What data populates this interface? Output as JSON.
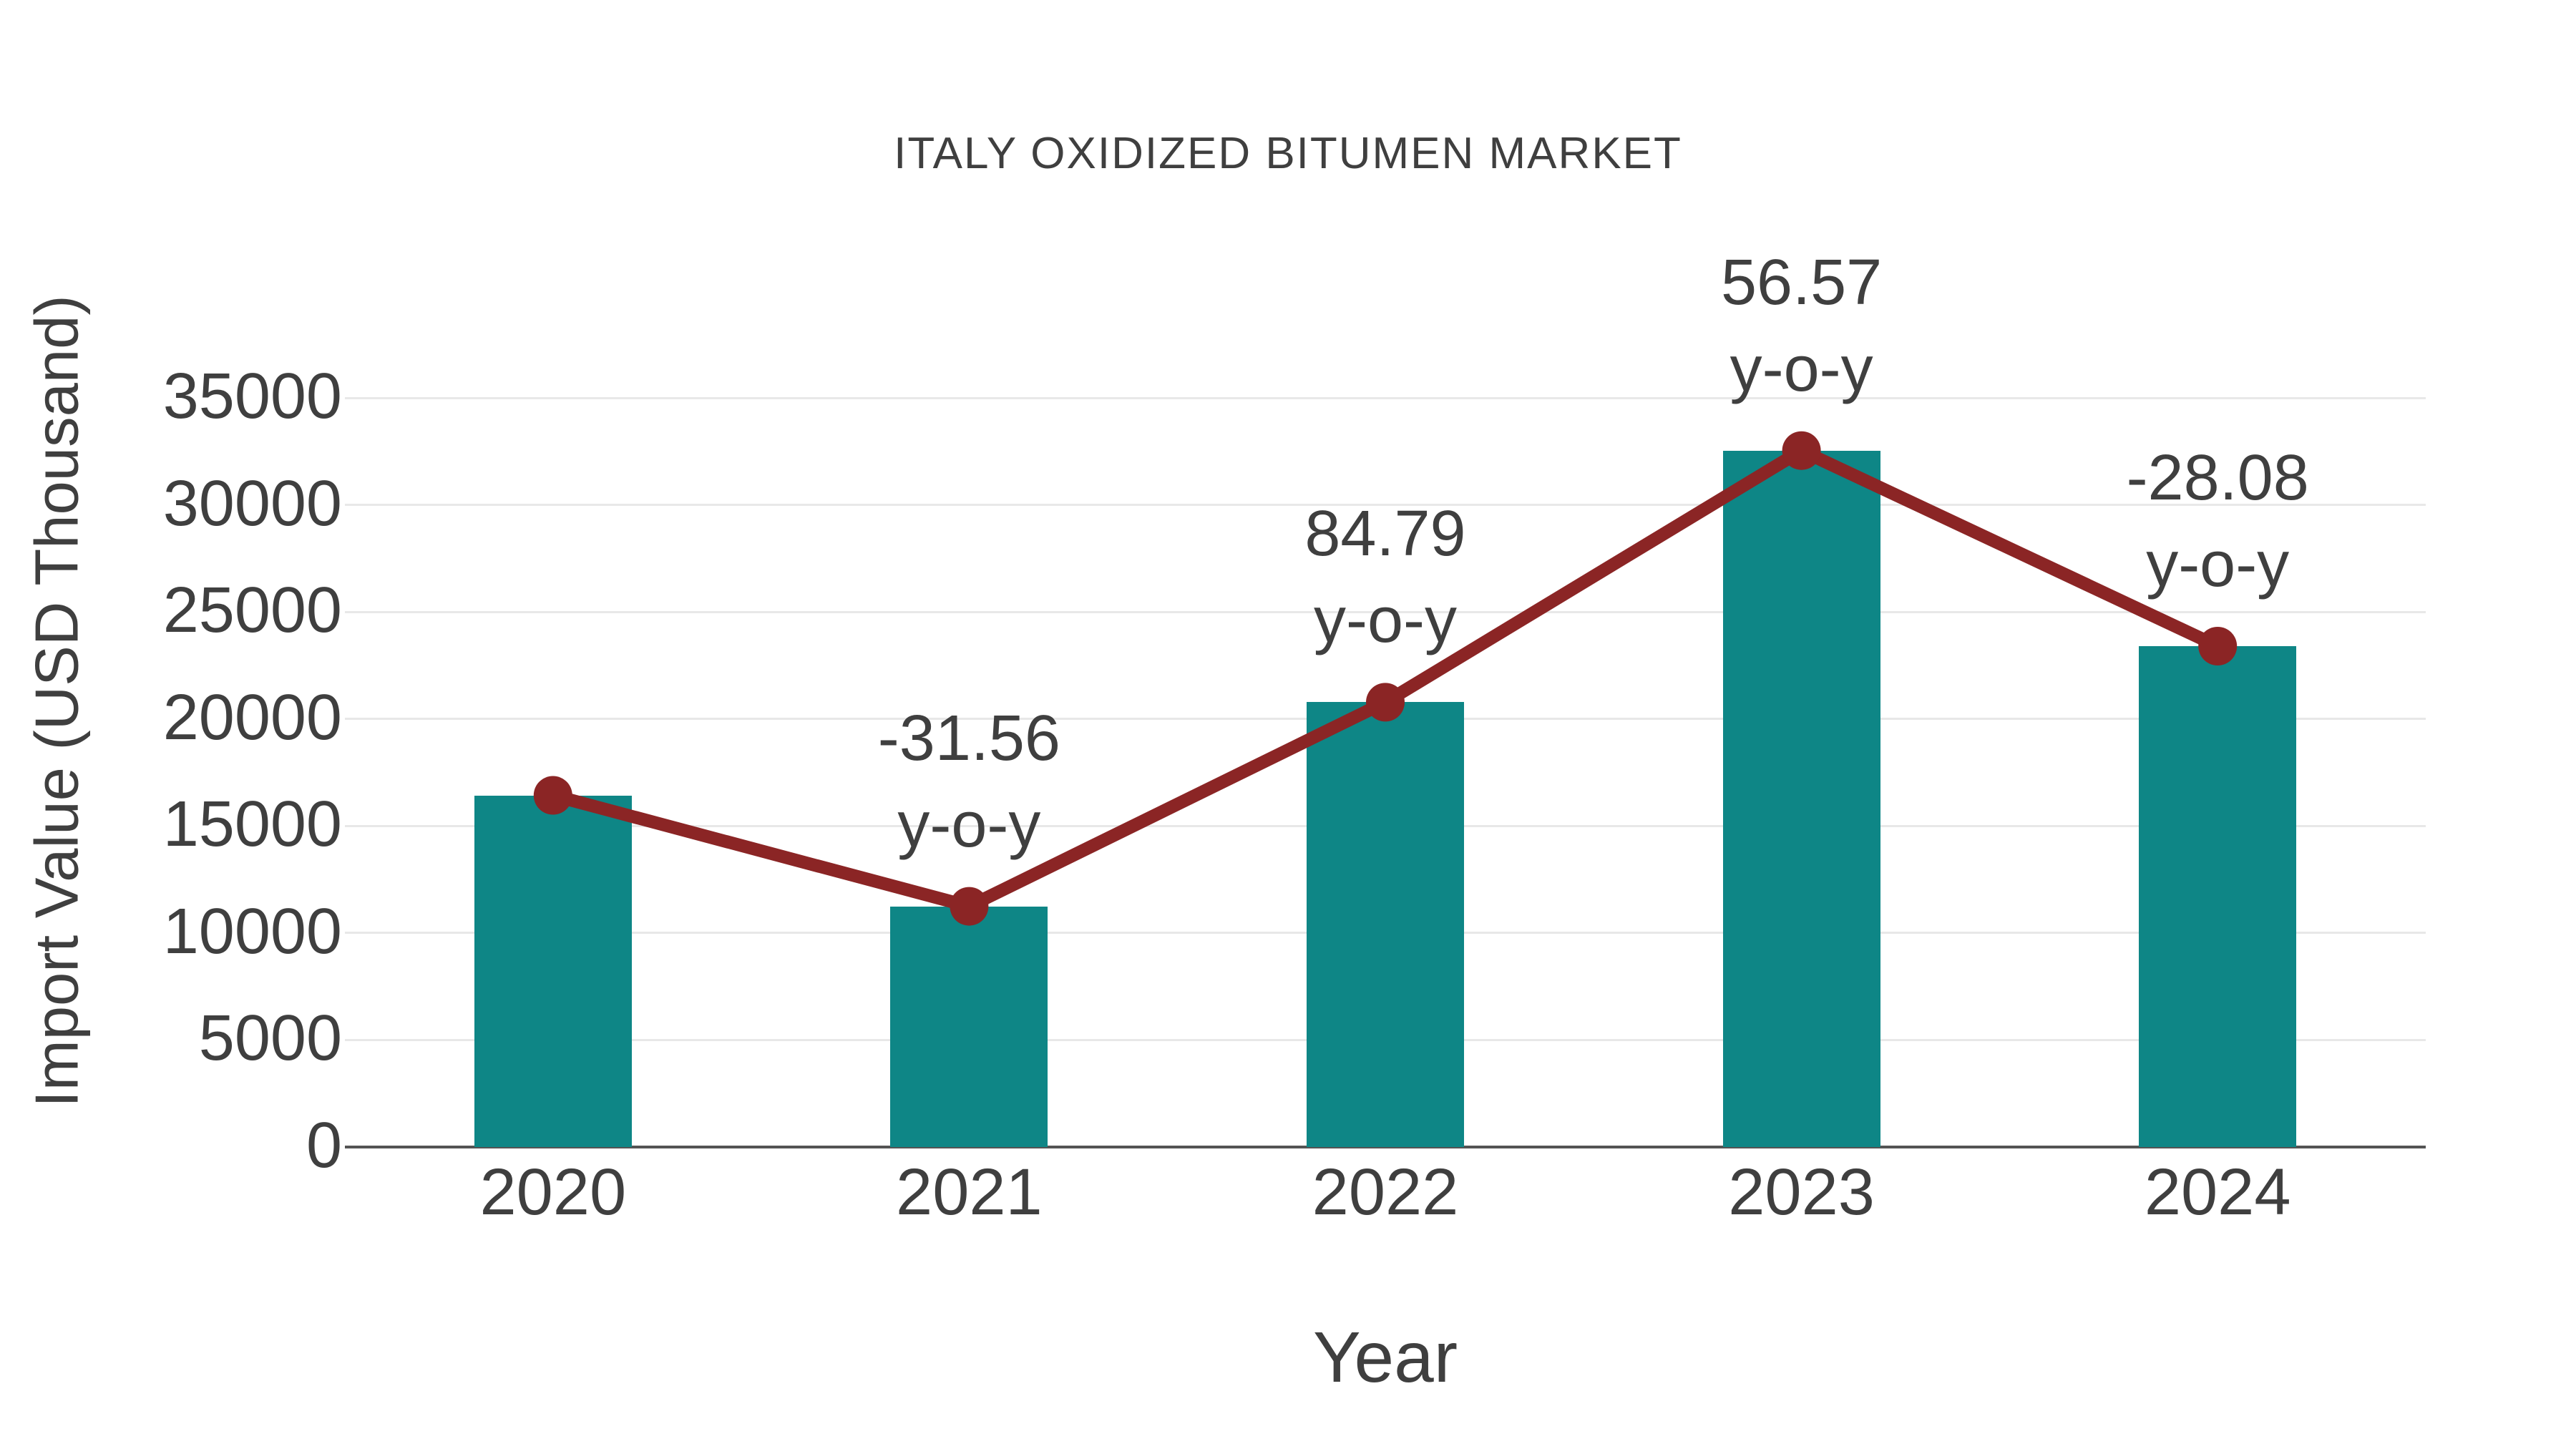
{
  "chart_data": {
    "type": "bar",
    "title": "ITALY OXIDIZED BITUMEN MARKET",
    "xlabel": "Year",
    "ylabel": "Import Value (USD Thousand)",
    "categories": [
      "2020",
      "2021",
      "2022",
      "2023",
      "2024"
    ],
    "series": [
      {
        "name": "Import Value (USD Thousand)",
        "type": "bar",
        "color": "#0e8686",
        "values": [
          16430,
          11245,
          20780,
          32535,
          23400
        ]
      },
      {
        "name": "y-o-y change (%)",
        "type": "line",
        "color": "#8b2525",
        "values": [
          null,
          -31.56,
          84.79,
          56.57,
          -28.08
        ]
      }
    ],
    "annotations": [
      {
        "category": "2021",
        "line1": "-31.56",
        "line2": "y-o-y"
      },
      {
        "category": "2022",
        "line1": "84.79",
        "line2": "y-o-y"
      },
      {
        "category": "2023",
        "line1": "56.57",
        "line2": "y-o-y"
      },
      {
        "category": "2024",
        "line1": "-28.08",
        "line2": "y-o-y"
      }
    ],
    "yticks": [
      0,
      5000,
      10000,
      15000,
      20000,
      25000,
      30000,
      35000
    ],
    "ylim": [
      0,
      35000
    ],
    "grid": true,
    "legend": "none"
  },
  "colors": {
    "bar": "#0e8686",
    "line": "#8b2525",
    "text": "#3f3f3f",
    "gridline": "#e8e8e8",
    "axis": "#545454",
    "background": "#ffffff"
  }
}
